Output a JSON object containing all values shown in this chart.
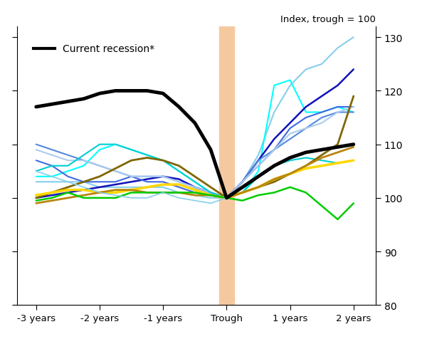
{
  "xlabel_ticks": [
    "-3 years",
    "-2 years",
    "-1 years",
    "Trough",
    "1 years",
    "2 years"
  ],
  "x_positions": [
    -3,
    -2,
    -1,
    0,
    1,
    2
  ],
  "ylim": [
    80,
    132
  ],
  "yticks": [
    80,
    90,
    100,
    110,
    120,
    130
  ],
  "ylabel_text": "Index, trough = 100",
  "legend_label": "Current recession*",
  "trough_shade_color": "#f5c9a0",
  "background_color": "#ffffff",
  "series": {
    "current_recession": {
      "color": "#000000",
      "linewidth": 3.5,
      "x": [
        -3,
        -2.75,
        -2.5,
        -2.25,
        -2,
        -1.75,
        -1.5,
        -1.25,
        -1,
        -0.75,
        -0.5,
        -0.25,
        0,
        0.25,
        0.5,
        0.75,
        1,
        1.25,
        1.5,
        1.75,
        2
      ],
      "y": [
        117,
        117.5,
        118,
        118.5,
        119.5,
        120,
        120,
        120,
        119.5,
        117,
        114,
        109,
        100,
        102,
        104,
        106,
        107.5,
        108.5,
        109,
        109.5,
        110
      ]
    },
    "light_blue_high": {
      "color": "#87CEEB",
      "linewidth": 1.5,
      "x": [
        -3,
        -2.75,
        -2.5,
        -2.25,
        -2,
        -1.75,
        -1.5,
        -1.25,
        -1,
        -0.75,
        -0.5,
        -0.25,
        0,
        0.25,
        0.5,
        0.75,
        1,
        1.25,
        1.5,
        1.75,
        2
      ],
      "y": [
        103,
        103,
        103,
        103,
        102,
        102,
        102,
        102,
        102,
        101,
        100.5,
        100,
        100,
        103,
        108,
        116,
        121,
        124,
        125,
        128,
        130
      ]
    },
    "cyan_spike": {
      "color": "#00FFFF",
      "linewidth": 1.5,
      "x": [
        -3,
        -2.75,
        -2.5,
        -2.25,
        -2,
        -1.75,
        -1.5,
        -1.25,
        -1,
        -0.75,
        -0.5,
        -0.25,
        0,
        0.25,
        0.5,
        0.75,
        1,
        1.25,
        1.5,
        1.75,
        2
      ],
      "y": [
        104,
        104,
        105,
        106,
        109,
        110,
        109,
        108,
        107,
        105,
        103,
        101,
        100,
        101,
        105,
        121,
        122,
        116,
        116,
        117,
        116
      ]
    },
    "dark_blue": {
      "color": "#1111BB",
      "linewidth": 1.8,
      "x": [
        -3,
        -2.75,
        -2.5,
        -2.25,
        -2,
        -1.75,
        -1.5,
        -1.25,
        -1,
        -0.75,
        -0.5,
        -0.25,
        0,
        0.25,
        0.5,
        0.75,
        1,
        1.25,
        1.5,
        1.75,
        2
      ],
      "y": [
        100,
        100.5,
        101,
        101.5,
        102,
        102.5,
        103,
        103.5,
        104,
        103.5,
        102,
        101,
        100,
        103,
        107,
        111,
        114,
        117,
        119,
        121,
        124
      ]
    },
    "medium_blue1": {
      "color": "#4169E1",
      "linewidth": 1.5,
      "x": [
        -3,
        -2.75,
        -2.5,
        -2.25,
        -2,
        -1.75,
        -1.5,
        -1.25,
        -1,
        -0.75,
        -0.5,
        -0.25,
        0,
        0.25,
        0.5,
        0.75,
        1,
        1.25,
        1.5,
        1.75,
        2
      ],
      "y": [
        107,
        106,
        104,
        103,
        103,
        103,
        104,
        103,
        103,
        102,
        101,
        100.5,
        100,
        103,
        106,
        109,
        113,
        115,
        116,
        117,
        117
      ]
    },
    "medium_blue2": {
      "color": "#5588DD",
      "linewidth": 1.5,
      "x": [
        -3,
        -2.75,
        -2.5,
        -2.25,
        -2,
        -1.75,
        -1.5,
        -1.25,
        -1,
        -0.75,
        -0.5,
        -0.25,
        0,
        0.25,
        0.5,
        0.75,
        1,
        1.25,
        1.5,
        1.75,
        2
      ],
      "y": [
        110,
        109,
        108,
        107,
        106,
        105,
        104,
        104,
        104,
        103,
        102,
        101,
        100,
        103,
        107,
        109,
        111,
        113,
        115,
        116,
        116
      ]
    },
    "light_blue2": {
      "color": "#AACCEE",
      "linewidth": 1.5,
      "x": [
        -3,
        -2.75,
        -2.5,
        -2.25,
        -2,
        -1.75,
        -1.5,
        -1.25,
        -1,
        -0.75,
        -0.5,
        -0.25,
        0,
        0.25,
        0.5,
        0.75,
        1,
        1.25,
        1.5,
        1.75,
        2
      ],
      "y": [
        109,
        108,
        107,
        107,
        106,
        105,
        104,
        104,
        104,
        103,
        102,
        101,
        100,
        103,
        106,
        109,
        112,
        113,
        114,
        116,
        117
      ]
    },
    "cyan_left": {
      "color": "#00CED1",
      "linewidth": 1.5,
      "x": [
        -3,
        -2.75,
        -2.5,
        -2.25,
        -2,
        -1.75,
        -1.5,
        -1.25,
        -1,
        -0.75,
        -0.5,
        -0.25,
        0,
        0.25,
        0.5,
        0.75,
        1,
        1.25,
        1.5,
        1.75,
        2
      ],
      "y": [
        105,
        106,
        106,
        108,
        110,
        110,
        109,
        108,
        107,
        105,
        103,
        101,
        100,
        101,
        104,
        106,
        107,
        107.5,
        107,
        106.5,
        107
      ]
    },
    "dark_olive": {
      "color": "#806600",
      "linewidth": 2,
      "x": [
        -3,
        -2.75,
        -2.5,
        -2.25,
        -2,
        -1.75,
        -1.5,
        -1.25,
        -1,
        -0.75,
        -0.5,
        -0.25,
        0,
        0.25,
        0.5,
        0.75,
        1,
        1.25,
        1.5,
        1.75,
        2
      ],
      "y": [
        100,
        101,
        102,
        103,
        104,
        105.5,
        107,
        107.5,
        107,
        106,
        104,
        102,
        100,
        101,
        102,
        103,
        104.5,
        106,
        108,
        110,
        119
      ]
    },
    "yellow": {
      "color": "#FFD700",
      "linewidth": 2.5,
      "x": [
        -3,
        -2.75,
        -2.5,
        -2.25,
        -2,
        -1.75,
        -1.5,
        -1.25,
        -1,
        -0.75,
        -0.5,
        -0.25,
        0,
        0.25,
        0.5,
        0.75,
        1,
        1.25,
        1.5,
        1.75,
        2
      ],
      "y": [
        100.5,
        101,
        101.5,
        101.5,
        101,
        101,
        101.5,
        102,
        102.5,
        102.5,
        101.5,
        100.5,
        100,
        101,
        102,
        103.5,
        104.5,
        105.5,
        106,
        106.5,
        107
      ]
    },
    "dark_yellow": {
      "color": "#B8860B",
      "linewidth": 2,
      "x": [
        -3,
        -2.75,
        -2.5,
        -2.25,
        -2,
        -1.75,
        -1.5,
        -1.25,
        -1,
        -0.75,
        -0.5,
        -0.25,
        0,
        0.25,
        0.5,
        0.75,
        1,
        1.25,
        1.5,
        1.75,
        2
      ],
      "y": [
        99,
        99.5,
        100,
        100.5,
        101,
        101.5,
        101.5,
        101,
        101,
        101,
        100.5,
        100.5,
        100,
        101,
        102,
        103.5,
        104.5,
        106,
        107.5,
        108.5,
        109.5
      ]
    },
    "green": {
      "color": "#00CC00",
      "linewidth": 1.8,
      "x": [
        -3,
        -2.75,
        -2.5,
        -2.25,
        -2,
        -1.75,
        -1.5,
        -1.25,
        -1,
        -0.75,
        -0.5,
        -0.25,
        0,
        0.25,
        0.5,
        0.75,
        1,
        1.25,
        1.5,
        1.75,
        2
      ],
      "y": [
        99.5,
        100,
        101,
        100,
        100,
        100,
        101,
        101,
        101,
        101,
        101,
        100.5,
        100,
        99.5,
        100.5,
        101,
        102,
        101,
        98.5,
        96,
        99
      ]
    },
    "light_blue_left": {
      "color": "#87CEEB",
      "linewidth": 1.2,
      "x": [
        -3,
        -2.75,
        -2.5,
        -2.25,
        -2,
        -1.75,
        -1.5,
        -1.25,
        -1,
        -0.75,
        -0.5,
        -0.25,
        0
      ],
      "y": [
        105,
        104,
        103,
        102,
        101,
        100.5,
        100,
        100,
        101,
        100,
        99.5,
        99,
        100
      ]
    }
  }
}
